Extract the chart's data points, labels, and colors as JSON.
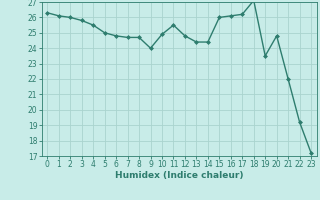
{
  "x": [
    0,
    1,
    2,
    3,
    4,
    5,
    6,
    7,
    8,
    9,
    10,
    11,
    12,
    13,
    14,
    15,
    16,
    17,
    18,
    19,
    20,
    21,
    22,
    23
  ],
  "y": [
    26.3,
    26.1,
    26.0,
    25.8,
    25.5,
    25.0,
    24.8,
    24.7,
    24.7,
    24.0,
    24.9,
    25.5,
    24.8,
    24.4,
    24.4,
    26.0,
    26.1,
    26.2,
    27.1,
    23.5,
    24.8,
    22.0,
    19.2,
    17.2
  ],
  "line_color": "#2e7d6e",
  "marker": "D",
  "marker_size": 2,
  "bg_color": "#c8ece8",
  "grid_color": "#aad4ce",
  "xlabel": "Humidex (Indice chaleur)",
  "ylim": [
    17,
    27
  ],
  "xlim": [
    -0.5,
    23.5
  ],
  "yticks": [
    17,
    18,
    19,
    20,
    21,
    22,
    23,
    24,
    25,
    26,
    27
  ],
  "xticks": [
    0,
    1,
    2,
    3,
    4,
    5,
    6,
    7,
    8,
    9,
    10,
    11,
    12,
    13,
    14,
    15,
    16,
    17,
    18,
    19,
    20,
    21,
    22,
    23
  ],
  "tick_fontsize": 5.5,
  "xlabel_fontsize": 6.5,
  "linewidth": 1.0
}
